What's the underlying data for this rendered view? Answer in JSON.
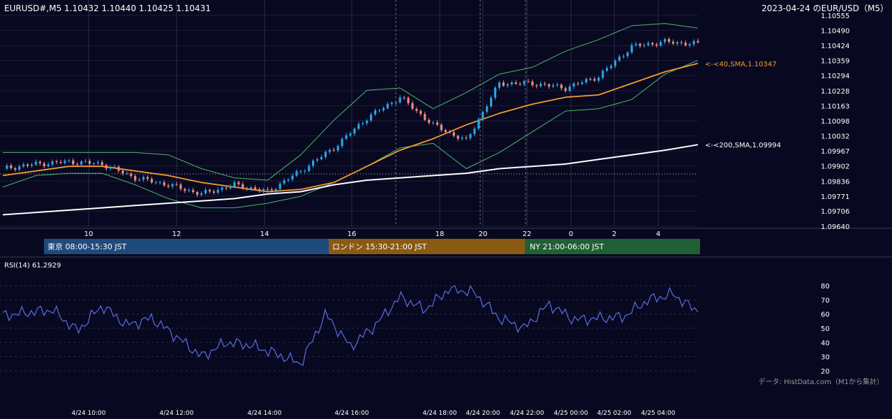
{
  "header": {
    "symbol_quote": "EURUSD#,M5 1.10432 1.10440 1.10425 1.10431",
    "date_title": "2023-04-24 のEUR/USD（M5）"
  },
  "price_axis": {
    "ticks": [
      "1.10555",
      "1.10490",
      "1.10424",
      "1.10359",
      "1.10294",
      "1.10228",
      "1.10163",
      "1.10098",
      "1.10032",
      "1.09967",
      "1.09902",
      "1.09836",
      "1.09771",
      "1.09706",
      "1.09640"
    ]
  },
  "hour_axis": {
    "ticks": [
      "10",
      "12",
      "14",
      "16",
      "18",
      "20",
      "22",
      "0",
      "2",
      "4"
    ]
  },
  "ma_labels": {
    "sma40": "<-<40,SMA,1.10347",
    "sma200": "<-<200,SMA,1.09994"
  },
  "sessions": [
    {
      "label": "東京 08:00-15:30 JST",
      "color": "#1f4a7c"
    },
    {
      "label": "ロンドン 15:30-21:00 JST",
      "color": "#8a5a12"
    },
    {
      "label": "NY 21:00-06:00 JST",
      "color": "#1f6035"
    }
  ],
  "rsi": {
    "title": "RSI(14) 61.2929",
    "ticks": [
      "80",
      "70",
      "60",
      "50",
      "40",
      "30",
      "20"
    ]
  },
  "time_axis": {
    "ticks": [
      "4/24 10:00",
      "4/24 12:00",
      "4/24 14:00",
      "4/24 16:00",
      "4/24 18:00",
      "4/24 20:00",
      "4/24 22:00",
      "4/25 00:00",
      "4/25 02:00",
      "4/25 04:00"
    ]
  },
  "footer": {
    "source": "データ: HistData.com（M1から集計）"
  },
  "colors": {
    "background": "#080920",
    "up_candle": "#29a3e8",
    "down_candle": "#f08a84",
    "sma40": "#f59a2f",
    "sma200": "#ffffff",
    "bollinger": "#4fb86b",
    "rsi_line": "#5b6ee8"
  },
  "chart_data": [
    {
      "type": "candlestick",
      "title": "2023-04-24 のEUR/USD（M5）",
      "ylim": [
        1.0964,
        1.10555
      ],
      "x": [
        "4/24 08:45",
        "4/24 09:45",
        "4/24 10:45",
        "4/24 11:45",
        "4/24 12:45",
        "4/24 13:45",
        "4/24 14:45",
        "4/24 15:45",
        "4/24 16:45",
        "4/24 17:45",
        "4/24 18:45",
        "4/24 19:45",
        "4/24 20:45",
        "4/24 21:45",
        "4/24 22:45",
        "4/24 23:45",
        "4/25 00:45",
        "4/25 01:45",
        "4/25 02:45",
        "4/25 03:45",
        "4/25 04:45",
        "4/25 05:15"
      ],
      "series": [
        {
          "name": "close",
          "values": [
            1.0989,
            1.0991,
            1.0992,
            1.0991,
            1.0985,
            1.0982,
            1.0978,
            1.0982,
            1.0979,
            1.0988,
            1.0998,
            1.1011,
            1.102,
            1.1008,
            1.1001,
            1.1026,
            1.1026,
            1.1024,
            1.1029,
            1.1042,
            1.1044,
            1.10431
          ]
        },
        {
          "name": "SMA(40)",
          "values": [
            1.0986,
            1.0988,
            1.099,
            1.099,
            1.0988,
            1.0986,
            1.0983,
            1.0981,
            1.0979,
            1.098,
            1.0983,
            1.099,
            1.0997,
            1.1002,
            1.1008,
            1.1013,
            1.1017,
            1.102,
            1.1021,
            1.1026,
            1.1031,
            1.10347
          ]
        },
        {
          "name": "SMA(200)",
          "values": [
            1.0969,
            1.097,
            1.0971,
            1.0972,
            1.0973,
            1.0974,
            1.0975,
            1.0976,
            1.0978,
            1.0979,
            1.0982,
            1.0984,
            1.0985,
            1.0986,
            1.0987,
            1.0989,
            1.099,
            1.0991,
            1.0993,
            1.0995,
            1.0997,
            1.09994
          ]
        },
        {
          "name": "BB upper",
          "values": [
            1.0996,
            1.0996,
            1.0996,
            1.0996,
            1.0996,
            1.0995,
            1.0989,
            1.0985,
            1.0984,
            1.0995,
            1.101,
            1.1023,
            1.1024,
            1.1015,
            1.1022,
            1.103,
            1.1033,
            1.104,
            1.1045,
            1.1051,
            1.1052,
            1.105
          ]
        },
        {
          "name": "BB lower",
          "values": [
            1.0981,
            1.0986,
            1.0987,
            1.0987,
            1.0982,
            1.0976,
            1.0972,
            1.0972,
            1.0974,
            1.0977,
            1.0983,
            1.099,
            1.0998,
            1.1,
            1.0989,
            1.0996,
            1.1005,
            1.1014,
            1.1015,
            1.1019,
            1.103,
            1.1036
          ]
        }
      ]
    },
    {
      "type": "line",
      "title": "RSI(14) 61.2929",
      "ylim": [
        20,
        80
      ],
      "x": [
        "4/24 08:45",
        "4/24 09:30",
        "4/24 10:15",
        "4/24 11:00",
        "4/24 11:45",
        "4/24 12:30",
        "4/24 13:15",
        "4/24 14:00",
        "4/24 14:45",
        "4/24 15:30",
        "4/24 16:15",
        "4/24 17:00",
        "4/24 17:45",
        "4/24 18:30",
        "4/24 19:15",
        "4/24 20:00",
        "4/24 20:45",
        "4/24 21:30",
        "4/24 22:15",
        "4/24 23:00",
        "4/24 23:45",
        "4/25 00:30",
        "4/25 01:15",
        "4/25 02:00",
        "4/25 02:45",
        "4/25 03:30",
        "4/25 04:15",
        "4/25 05:00",
        "4/25 05:15"
      ],
      "series": [
        {
          "name": "RSI(14)",
          "values": [
            59,
            61,
            63,
            48,
            66,
            52,
            57,
            44,
            30,
            40,
            38,
            32,
            25,
            60,
            37,
            52,
            72,
            63,
            78,
            75,
            57,
            50,
            67,
            56,
            57,
            58,
            70,
            74,
            61.29
          ]
        }
      ]
    }
  ]
}
